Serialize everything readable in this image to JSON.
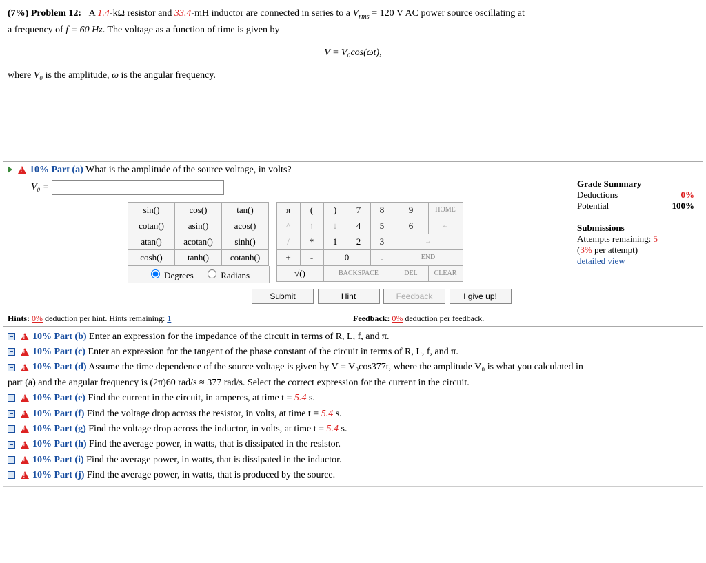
{
  "problem": {
    "weight_label": "(7%)  Problem 12:",
    "r_val": "1.4",
    "r_unit": "-kΩ resistor and ",
    "l_val": "33.4",
    "l_unit": "-mH inductor are connected in series to a ",
    "v_label": "V",
    "v_sub": "rms",
    "v_eq": " = 120 V AC power source oscillating at",
    "line2_pre": "a frequency of ",
    "f_expr": "f = 60 Hz",
    "line2_post": ". The voltage as a function of time is given by",
    "equation": "V = V₀cos(ωt),",
    "line3_pre": "where ",
    "v0": "V₀",
    "line3_mid": " is the amplitude, ",
    "omega": "ω",
    "line3_post": " is the angular frequency."
  },
  "part_a": {
    "label": "10% Part (a)",
    "question": "  What is the amplitude of the source voltage, in volts?",
    "var": "V₀ ="
  },
  "keypad": {
    "fns": [
      [
        "sin()",
        "cos()",
        "tan()"
      ],
      [
        "cotan()",
        "asin()",
        "acos()"
      ],
      [
        "atan()",
        "acotan()",
        "sinh()"
      ],
      [
        "cosh()",
        "tanh()",
        "cotanh()"
      ]
    ],
    "mode_deg": "Degrees",
    "mode_rad": "Radians",
    "nums": {
      "r1": [
        "π",
        "(",
        ")",
        "7",
        "8",
        "9"
      ],
      "r2": [
        "↑",
        "↓",
        "4",
        "5",
        "6"
      ],
      "r3": [
        "/",
        "*",
        "1",
        "2",
        "3"
      ],
      "r4": [
        "+",
        "-",
        "0",
        "."
      ],
      "sqrt": "√()",
      "home": "HOME",
      "left": "←",
      "right": "→",
      "end": "END",
      "back": "BACKSPACE",
      "del": "DEL",
      "clear": "CLEAR"
    }
  },
  "actions": {
    "submit": "Submit",
    "hint": "Hint",
    "feedback": "Feedback",
    "giveup": "I give up!"
  },
  "summary": {
    "title": "Grade Summary",
    "ded_label": "Deductions",
    "ded_val": "0%",
    "pot_label": "Potential",
    "pot_val": "100%",
    "subs_title": "Submissions",
    "att_label": "Attempts remaining: ",
    "att_val": "5",
    "per_pre": "(",
    "per_val": "3%",
    "per_post": " per attempt)",
    "detailed": "detailed view"
  },
  "hints_bar": {
    "left_pre": "Hints: ",
    "left_val": "0%",
    "left_mid": "  deduction per hint. Hints remaining: ",
    "left_rem": "1",
    "right_pre": "Feedback: ",
    "right_val": "0%",
    "right_post": "  deduction per feedback."
  },
  "parts": [
    {
      "label": "10% Part (b)",
      "text": "  Enter an expression for the impedance of the circuit in terms of R, L, f, and π."
    },
    {
      "label": "10% Part (c)",
      "text": "  Enter an expression for the tangent of the phase constant of the circuit in terms of R, L, f, and π."
    },
    {
      "label": "10% Part (d)",
      "text": "  Assume the time dependence of the source voltage is given by V = V₀cos377t, where the amplitude V₀ is what you calculated in"
    },
    {
      "label": "",
      "text": "part (a) and the angular frequency is (2π)60 rad/s ≈ 377 rad/s. Select the correct expression for the current in the circuit.",
      "noicon": true
    },
    {
      "label": "10% Part (e)",
      "text": "  Find the current in the circuit, in amperes, at time t = ",
      "tval": "5.4",
      "tpost": " s."
    },
    {
      "label": "10% Part (f)",
      "text": "  Find the voltage drop across the resistor, in volts, at time t = ",
      "tval": "5.4",
      "tpost": " s."
    },
    {
      "label": "10% Part (g)",
      "text": "  Find the voltage drop across the inductor, in volts, at time t = ",
      "tval": "5.4",
      "tpost": " s."
    },
    {
      "label": "10% Part (h)",
      "text": "  Find the average power, in watts, that is dissipated in the resistor."
    },
    {
      "label": "10% Part (i)",
      "text": "  Find the average power, in watts, that is dissipated in the inductor."
    },
    {
      "label": "10% Part (j)",
      "text": "  Find the average power, in watts, that is produced by the source."
    }
  ]
}
